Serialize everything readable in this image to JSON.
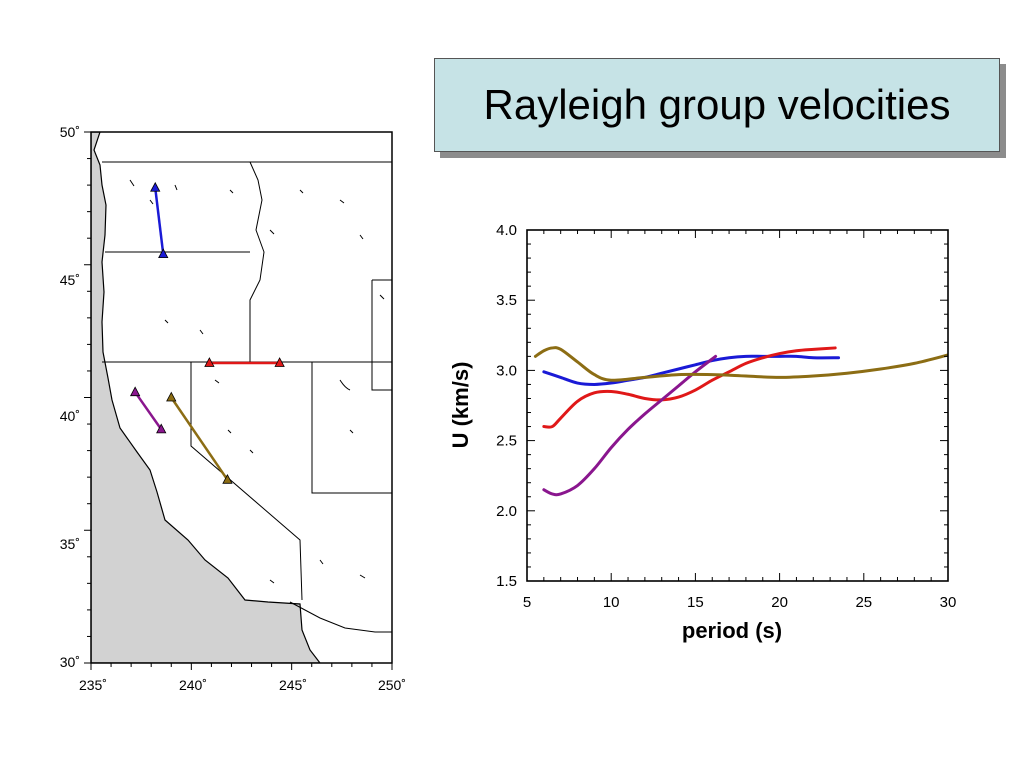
{
  "title": "Rayleigh group velocities",
  "colors": {
    "title_bg": "#c6e3e6",
    "ocean": "#d2d2d2",
    "blue": "#1a1ad6",
    "red": "#e01818",
    "purple": "#8a168e",
    "olive": "#8c6d14"
  },
  "map": {
    "lat_labels": [
      "50˚",
      "45˚",
      "40˚",
      "35˚",
      "30˚"
    ],
    "lon_labels": [
      "235˚",
      "240˚",
      "245˚",
      "250˚"
    ],
    "lon_range": [
      235,
      250
    ],
    "lat_range": [
      30,
      50
    ],
    "paths": [
      {
        "name": "blue-path",
        "color": "blue",
        "from": [
          238.6,
          45.4
        ],
        "to": [
          238.2,
          47.9
        ]
      },
      {
        "name": "red-path",
        "color": "red",
        "from": [
          240.9,
          41.3
        ],
        "to": [
          244.4,
          41.3
        ]
      },
      {
        "name": "purple-path",
        "color": "purple",
        "from": [
          237.2,
          40.2
        ],
        "to": [
          238.5,
          38.8
        ]
      },
      {
        "name": "olive-path",
        "color": "olive",
        "from": [
          239.0,
          40.0
        ],
        "to": [
          241.8,
          36.9
        ]
      }
    ]
  },
  "chart_data": {
    "type": "line",
    "xlabel": "period (s)",
    "ylabel": "U (km/s)",
    "xlim": [
      5,
      30
    ],
    "ylim": [
      1.5,
      4.0
    ],
    "x_ticks": [
      "5",
      "10",
      "15",
      "20",
      "25",
      "30"
    ],
    "y_ticks": [
      "1.5",
      "2.0",
      "2.5",
      "3.0",
      "3.5",
      "4.0"
    ],
    "series": [
      {
        "color": "blue",
        "x": [
          6,
          7,
          8,
          9,
          10,
          11,
          12,
          13,
          14,
          15,
          16,
          17,
          18,
          19,
          20,
          21,
          22,
          23.5
        ],
        "y": [
          2.99,
          2.95,
          2.91,
          2.9,
          2.91,
          2.93,
          2.95,
          2.98,
          3.01,
          3.04,
          3.07,
          3.09,
          3.1,
          3.1,
          3.1,
          3.1,
          3.09,
          3.09
        ]
      },
      {
        "color": "red",
        "x": [
          6,
          6.5,
          7,
          8,
          9,
          10,
          11,
          12,
          13,
          14,
          15,
          16,
          17,
          18,
          19,
          20,
          21,
          22,
          23.3
        ],
        "y": [
          2.6,
          2.6,
          2.66,
          2.78,
          2.84,
          2.85,
          2.83,
          2.8,
          2.79,
          2.81,
          2.86,
          2.93,
          2.99,
          3.05,
          3.09,
          3.12,
          3.14,
          3.15,
          3.16
        ]
      },
      {
        "color": "purple",
        "x": [
          6,
          6.5,
          7,
          8,
          9,
          10,
          11,
          12,
          13,
          14,
          15,
          16.2
        ],
        "y": [
          2.15,
          2.12,
          2.12,
          2.18,
          2.3,
          2.45,
          2.58,
          2.69,
          2.79,
          2.89,
          2.99,
          3.1
        ]
      },
      {
        "color": "olive",
        "x": [
          5.5,
          6,
          6.5,
          7,
          8,
          9,
          10,
          12,
          14,
          16,
          18,
          20,
          22,
          24,
          26,
          28,
          30
        ],
        "y": [
          3.1,
          3.14,
          3.16,
          3.15,
          3.06,
          2.97,
          2.93,
          2.95,
          2.97,
          2.97,
          2.96,
          2.95,
          2.96,
          2.98,
          3.01,
          3.05,
          3.11
        ]
      }
    ]
  }
}
